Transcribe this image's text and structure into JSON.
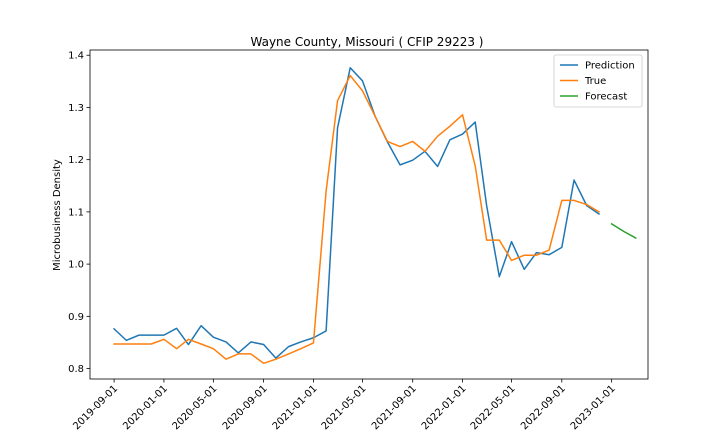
{
  "chart_data": {
    "type": "line",
    "title": "Wayne County, Missouri ( CFIP 29223 )",
    "xlabel": "",
    "ylabel": "Microbusiness Density",
    "ylim": [
      0.78,
      1.41
    ],
    "xlim": [
      "2019-07-04",
      "2023-03-31"
    ],
    "yticks": [
      "0.8",
      "0.9",
      "1.0",
      "1.1",
      "1.2",
      "1.3",
      "1.4"
    ],
    "xticks": [
      "2019-09-01",
      "2020-01-01",
      "2020-05-01",
      "2020-09-01",
      "2021-01-01",
      "2021-05-01",
      "2021-09-01",
      "2022-01-01",
      "2022-05-01",
      "2022-09-01",
      "2023-01-01"
    ],
    "legend_position": "top-right",
    "grid": false,
    "series": [
      {
        "name": "Prediction",
        "color": "#1f77b4",
        "points": [
          [
            "2019-09-01",
            0.876
          ],
          [
            "2019-10-01",
            0.854
          ],
          [
            "2019-11-01",
            0.864
          ],
          [
            "2019-12-01",
            0.864
          ],
          [
            "2020-01-01",
            0.864
          ],
          [
            "2020-02-01",
            0.877
          ],
          [
            "2020-03-01",
            0.846
          ],
          [
            "2020-04-01",
            0.882
          ],
          [
            "2020-05-01",
            0.86
          ],
          [
            "2020-06-01",
            0.851
          ],
          [
            "2020-07-01",
            0.83
          ],
          [
            "2020-08-01",
            0.851
          ],
          [
            "2020-09-01",
            0.846
          ],
          [
            "2020-10-01",
            0.82
          ],
          [
            "2020-11-01",
            0.842
          ],
          [
            "2020-12-01",
            0.851
          ],
          [
            "2021-01-01",
            0.859
          ],
          [
            "2021-02-01",
            0.872
          ],
          [
            "2021-03-01",
            1.261
          ],
          [
            "2021-04-01",
            1.376
          ],
          [
            "2021-05-01",
            1.351
          ],
          [
            "2021-06-01",
            1.283
          ],
          [
            "2021-07-01",
            1.234
          ],
          [
            "2021-08-01",
            1.19
          ],
          [
            "2021-09-01",
            1.199
          ],
          [
            "2021-10-01",
            1.216
          ],
          [
            "2021-11-01",
            1.187
          ],
          [
            "2021-12-01",
            1.238
          ],
          [
            "2022-01-01",
            1.249
          ],
          [
            "2022-02-01",
            1.272
          ],
          [
            "2022-03-01",
            1.112
          ],
          [
            "2022-04-01",
            0.976
          ],
          [
            "2022-05-01",
            1.043
          ],
          [
            "2022-06-01",
            0.99
          ],
          [
            "2022-07-01",
            1.022
          ],
          [
            "2022-08-01",
            1.018
          ],
          [
            "2022-09-01",
            1.032
          ],
          [
            "2022-10-01",
            1.161
          ],
          [
            "2022-11-01",
            1.112
          ],
          [
            "2022-12-01",
            1.096
          ]
        ]
      },
      {
        "name": "True",
        "color": "#ff7f0e",
        "points": [
          [
            "2019-09-01",
            0.847
          ],
          [
            "2019-10-01",
            0.847
          ],
          [
            "2019-11-01",
            0.847
          ],
          [
            "2019-12-01",
            0.847
          ],
          [
            "2020-01-01",
            0.856
          ],
          [
            "2020-02-01",
            0.838
          ],
          [
            "2020-03-01",
            0.856
          ],
          [
            "2020-04-01",
            0.847
          ],
          [
            "2020-05-01",
            0.838
          ],
          [
            "2020-06-01",
            0.818
          ],
          [
            "2020-07-01",
            0.828
          ],
          [
            "2020-08-01",
            0.828
          ],
          [
            "2020-09-01",
            0.81
          ],
          [
            "2020-10-01",
            0.818
          ],
          [
            "2020-11-01",
            0.828
          ],
          [
            "2020-12-01",
            0.838
          ],
          [
            "2021-01-01",
            0.849
          ],
          [
            "2021-02-01",
            1.14
          ],
          [
            "2021-03-01",
            1.313
          ],
          [
            "2021-04-01",
            1.361
          ],
          [
            "2021-05-01",
            1.332
          ],
          [
            "2021-06-01",
            1.283
          ],
          [
            "2021-07-01",
            1.235
          ],
          [
            "2021-08-01",
            1.225
          ],
          [
            "2021-09-01",
            1.235
          ],
          [
            "2021-10-01",
            1.216
          ],
          [
            "2021-11-01",
            1.245
          ],
          [
            "2021-12-01",
            1.264
          ],
          [
            "2022-01-01",
            1.286
          ],
          [
            "2022-02-01",
            1.188
          ],
          [
            "2022-03-01",
            1.046
          ],
          [
            "2022-04-01",
            1.046
          ],
          [
            "2022-05-01",
            1.007
          ],
          [
            "2022-06-01",
            1.017
          ],
          [
            "2022-07-01",
            1.017
          ],
          [
            "2022-08-01",
            1.027
          ],
          [
            "2022-09-01",
            1.122
          ],
          [
            "2022-10-01",
            1.122
          ],
          [
            "2022-11-01",
            1.114
          ],
          [
            "2022-12-01",
            1.1
          ]
        ]
      },
      {
        "name": "Forecast",
        "color": "#2ca02c",
        "points": [
          [
            "2023-01-01",
            1.077
          ],
          [
            "2023-02-01",
            1.062
          ],
          [
            "2023-03-01",
            1.05
          ]
        ]
      }
    ]
  }
}
